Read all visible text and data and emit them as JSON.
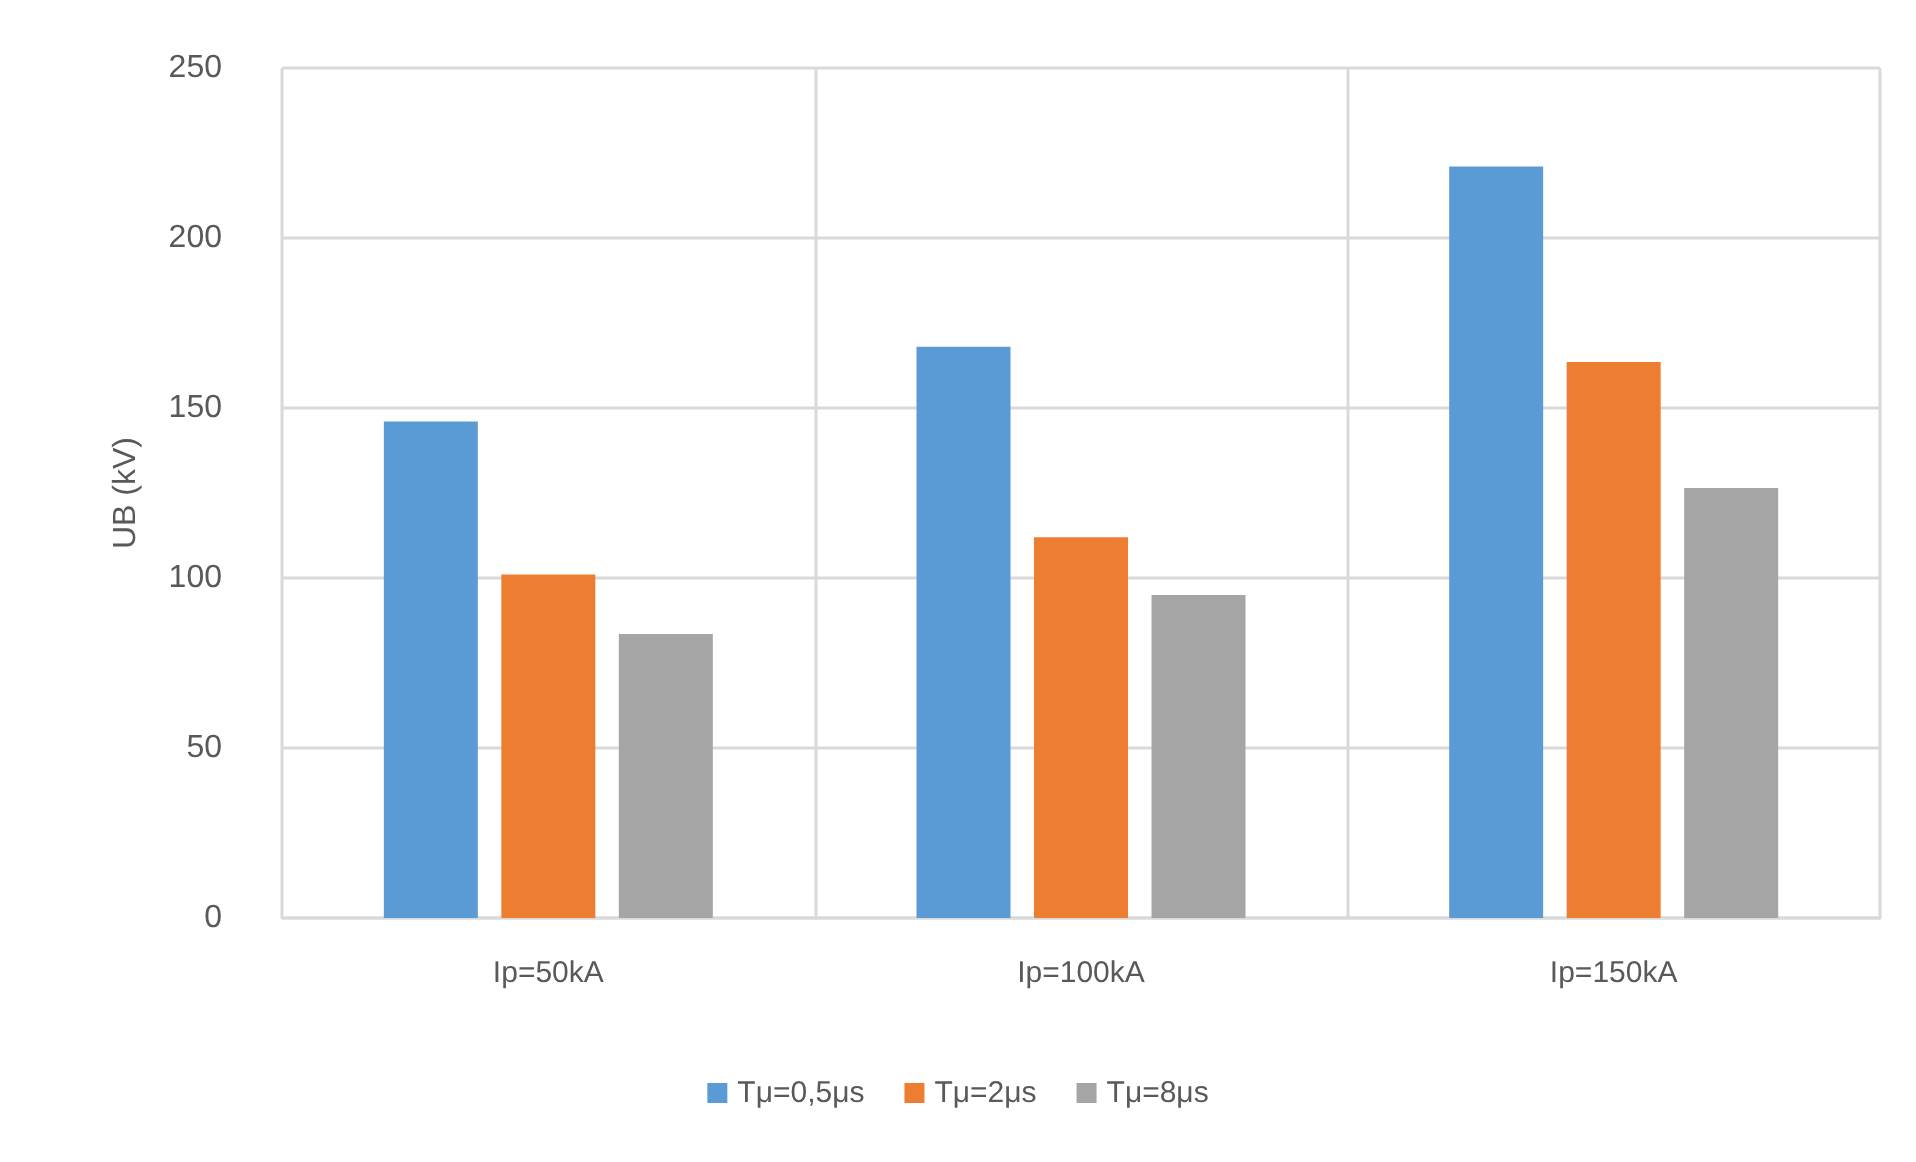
{
  "chart_data": {
    "type": "bar",
    "ylabel": "UB (kV)",
    "categories": [
      "Ip=50kA",
      "Ip=100kA",
      "Ip=150kA"
    ],
    "series": [
      {
        "name": "Tμ=0,5μs",
        "color": "#5b9bd5",
        "values": [
          146,
          168,
          221
        ]
      },
      {
        "name": "Tμ=2μs",
        "color": "#ed7d31",
        "values": [
          101,
          112,
          163.5
        ]
      },
      {
        "name": "Tμ=8μs",
        "color": "#a5a5a5",
        "values": [
          83.5,
          95,
          126.5
        ]
      }
    ],
    "ylim": [
      0,
      250
    ],
    "yticks": [
      0,
      50,
      100,
      150,
      200,
      250
    ],
    "grid": true,
    "legend": "bottom"
  }
}
